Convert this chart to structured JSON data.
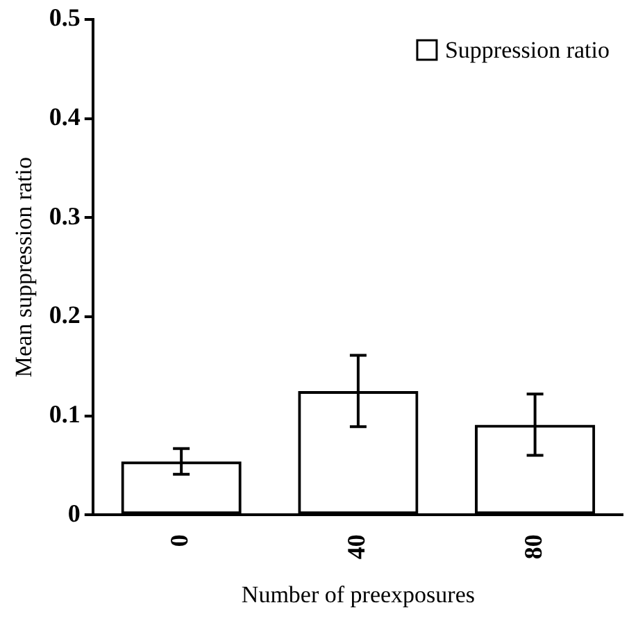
{
  "chart_data": {
    "type": "bar",
    "xlabel": "Number of preexposures",
    "ylabel": "Mean suppression ratio",
    "categories": [
      "0",
      "40",
      "80"
    ],
    "series": [
      {
        "name": "Suppression ratio",
        "color": "#000000",
        "values": [
          0.054,
          0.125,
          0.091
        ],
        "errors": [
          0.013,
          0.036,
          0.031
        ]
      }
    ],
    "ylim": [
      0,
      0.5
    ],
    "yticks": [
      0,
      0.1,
      0.2,
      0.3,
      0.4,
      0.5
    ],
    "grid": false,
    "legend": "top right"
  }
}
